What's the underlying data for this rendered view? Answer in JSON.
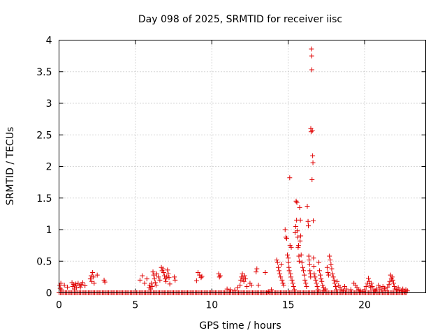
{
  "chart_data": {
    "type": "scatter",
    "title": "Day 098 of 2025, SRMTID for receiver iisc",
    "xlabel": "GPS time / hours",
    "ylabel": "SRMTID / TECUs",
    "xlim": [
      0,
      24
    ],
    "ylim": [
      0,
      4
    ],
    "xticks": [
      0,
      5,
      10,
      15,
      20
    ],
    "xtick_labels": [
      "0",
      "5",
      "10",
      "15",
      "20"
    ],
    "yticks": [
      0,
      0.5,
      1,
      1.5,
      2,
      2.5,
      3,
      3.5,
      4
    ],
    "ytick_labels": [
      "0",
      "0.5",
      "1",
      "1.5",
      "2",
      "2.5",
      "3",
      "3.5",
      "4"
    ],
    "grid": true,
    "marker": "plus",
    "color": "#e00000",
    "series": [
      {
        "name": "SRMTID",
        "baseline": {
          "x_start": 0.0,
          "x_end": 22.8,
          "step": 0.0833,
          "value": 0.0
        },
        "points": [
          [
            0.05,
            0.12
          ],
          [
            0.08,
            0.07
          ],
          [
            0.12,
            0.15
          ],
          [
            0.15,
            0.05
          ],
          [
            0.35,
            0.12
          ],
          [
            0.55,
            0.09
          ],
          [
            0.85,
            0.16
          ],
          [
            0.9,
            0.1
          ],
          [
            0.95,
            0.13
          ],
          [
            1.0,
            0.06
          ],
          [
            1.05,
            0.11
          ],
          [
            1.1,
            0.14
          ],
          [
            1.15,
            0.08
          ],
          [
            1.25,
            0.15
          ],
          [
            1.35,
            0.12
          ],
          [
            1.4,
            0.09
          ],
          [
            1.45,
            0.13
          ],
          [
            1.55,
            0.16
          ],
          [
            1.7,
            0.11
          ],
          [
            2.05,
            0.22
          ],
          [
            2.1,
            0.27
          ],
          [
            2.15,
            0.18
          ],
          [
            2.2,
            0.32
          ],
          [
            2.25,
            0.25
          ],
          [
            2.3,
            0.15
          ],
          [
            2.5,
            0.28
          ],
          [
            2.95,
            0.2
          ],
          [
            3.0,
            0.17
          ],
          [
            5.3,
            0.2
          ],
          [
            5.45,
            0.27
          ],
          [
            5.6,
            0.15
          ],
          [
            5.75,
            0.22
          ],
          [
            5.9,
            0.08
          ],
          [
            5.95,
            0.12
          ],
          [
            6.0,
            0.06
          ],
          [
            6.05,
            0.15
          ],
          [
            6.1,
            0.1
          ],
          [
            6.15,
            0.33
          ],
          [
            6.2,
            0.28
          ],
          [
            6.25,
            0.22
          ],
          [
            6.3,
            0.16
          ],
          [
            6.35,
            0.12
          ],
          [
            6.4,
            0.3
          ],
          [
            6.5,
            0.25
          ],
          [
            6.6,
            0.2
          ],
          [
            6.7,
            0.4
          ],
          [
            6.75,
            0.35
          ],
          [
            6.8,
            0.38
          ],
          [
            6.85,
            0.32
          ],
          [
            6.9,
            0.27
          ],
          [
            6.95,
            0.22
          ],
          [
            7.0,
            0.18
          ],
          [
            7.05,
            0.25
          ],
          [
            7.1,
            0.36
          ],
          [
            7.15,
            0.3
          ],
          [
            7.2,
            0.24
          ],
          [
            7.25,
            0.14
          ],
          [
            7.55,
            0.25
          ],
          [
            7.6,
            0.2
          ],
          [
            9.0,
            0.19
          ],
          [
            9.1,
            0.32
          ],
          [
            9.2,
            0.28
          ],
          [
            9.3,
            0.24
          ],
          [
            9.35,
            0.26
          ],
          [
            10.45,
            0.3
          ],
          [
            10.5,
            0.25
          ],
          [
            10.55,
            0.27
          ],
          [
            11.0,
            0.06
          ],
          [
            11.2,
            0.05
          ],
          [
            11.5,
            0.04
          ],
          [
            11.7,
            0.08
          ],
          [
            11.85,
            0.12
          ],
          [
            11.9,
            0.2
          ],
          [
            11.95,
            0.25
          ],
          [
            12.0,
            0.3
          ],
          [
            12.05,
            0.22
          ],
          [
            12.1,
            0.18
          ],
          [
            12.15,
            0.27
          ],
          [
            12.2,
            0.22
          ],
          [
            12.3,
            0.1
          ],
          [
            12.5,
            0.15
          ],
          [
            12.6,
            0.12
          ],
          [
            12.9,
            0.33
          ],
          [
            12.95,
            0.38
          ],
          [
            13.05,
            0.12
          ],
          [
            13.5,
            0.32
          ],
          [
            13.7,
            0.02
          ],
          [
            13.9,
            0.05
          ],
          [
            14.25,
            0.52
          ],
          [
            14.3,
            0.48
          ],
          [
            14.35,
            0.4
          ],
          [
            14.4,
            0.35
          ],
          [
            14.45,
            0.3
          ],
          [
            14.5,
            0.25
          ],
          [
            14.55,
            0.45
          ],
          [
            14.6,
            0.2
          ],
          [
            14.65,
            0.15
          ],
          [
            14.7,
            0.12
          ],
          [
            14.8,
            1.0
          ],
          [
            14.85,
            0.88
          ],
          [
            14.9,
            0.86
          ],
          [
            14.95,
            0.6
          ],
          [
            15.0,
            0.55
          ],
          [
            15.02,
            0.48
          ],
          [
            15.05,
            0.4
          ],
          [
            15.07,
            0.35
          ],
          [
            15.1,
            1.82
          ],
          [
            15.12,
            0.75
          ],
          [
            15.15,
            0.3
          ],
          [
            15.18,
            0.25
          ],
          [
            15.2,
            0.72
          ],
          [
            15.25,
            0.2
          ],
          [
            15.3,
            0.15
          ],
          [
            15.35,
            0.1
          ],
          [
            15.4,
            0.05
          ],
          [
            15.45,
            0.95
          ],
          [
            15.5,
            1.05
          ],
          [
            15.52,
            1.45
          ],
          [
            15.55,
            1.15
          ],
          [
            15.57,
            1.43
          ],
          [
            15.6,
            0.98
          ],
          [
            15.62,
            0.88
          ],
          [
            15.65,
            0.72
          ],
          [
            15.68,
            0.75
          ],
          [
            15.7,
            0.58
          ],
          [
            15.72,
            0.5
          ],
          [
            15.75,
            1.35
          ],
          [
            15.78,
            0.82
          ],
          [
            15.8,
            1.15
          ],
          [
            15.82,
            0.9
          ],
          [
            15.85,
            0.6
          ],
          [
            15.9,
            0.48
          ],
          [
            15.95,
            0.4
          ],
          [
            16.0,
            0.35
          ],
          [
            16.05,
            0.28
          ],
          [
            16.1,
            0.2
          ],
          [
            16.15,
            0.15
          ],
          [
            16.2,
            0.1
          ],
          [
            16.25,
            1.37
          ],
          [
            16.3,
            1.13
          ],
          [
            16.32,
            1.06
          ],
          [
            16.35,
            0.58
          ],
          [
            16.37,
            0.52
          ],
          [
            16.4,
            0.45
          ],
          [
            16.42,
            0.35
          ],
          [
            16.45,
            0.3
          ],
          [
            16.47,
            0.25
          ],
          [
            16.48,
            2.6
          ],
          [
            16.5,
            2.55
          ],
          [
            16.52,
            3.86
          ],
          [
            16.54,
            3.75
          ],
          [
            16.55,
            3.53
          ],
          [
            16.56,
            1.79
          ],
          [
            16.58,
            2.57
          ],
          [
            16.6,
            2.17
          ],
          [
            16.62,
            2.06
          ],
          [
            16.64,
            1.14
          ],
          [
            16.66,
            0.55
          ],
          [
            16.68,
            0.42
          ],
          [
            16.7,
            0.3
          ],
          [
            16.75,
            0.25
          ],
          [
            16.8,
            0.2
          ],
          [
            16.85,
            0.15
          ],
          [
            16.9,
            0.1
          ],
          [
            16.95,
            0.05
          ],
          [
            17.0,
            0.48
          ],
          [
            17.05,
            0.35
          ],
          [
            17.1,
            0.28
          ],
          [
            17.15,
            0.22
          ],
          [
            17.2,
            0.18
          ],
          [
            17.25,
            0.12
          ],
          [
            17.3,
            0.08
          ],
          [
            17.35,
            0.04
          ],
          [
            17.45,
            0.06
          ],
          [
            17.55,
            0.4
          ],
          [
            17.6,
            0.32
          ],
          [
            17.65,
            0.28
          ],
          [
            17.7,
            0.58
          ],
          [
            17.75,
            0.52
          ],
          [
            17.8,
            0.45
          ],
          [
            17.85,
            0.38
          ],
          [
            17.9,
            0.3
          ],
          [
            17.95,
            0.25
          ],
          [
            18.0,
            0.2
          ],
          [
            18.05,
            0.15
          ],
          [
            18.1,
            0.1
          ],
          [
            18.15,
            0.05
          ],
          [
            18.2,
            0.18
          ],
          [
            18.3,
            0.12
          ],
          [
            18.4,
            0.08
          ],
          [
            18.5,
            0.05
          ],
          [
            18.6,
            0.03
          ],
          [
            18.7,
            0.1
          ],
          [
            18.8,
            0.06
          ],
          [
            19.1,
            0.05
          ],
          [
            19.3,
            0.15
          ],
          [
            19.4,
            0.12
          ],
          [
            19.5,
            0.08
          ],
          [
            19.6,
            0.05
          ],
          [
            19.7,
            0.04
          ],
          [
            19.9,
            0.02
          ],
          [
            20.0,
            0.05
          ],
          [
            20.1,
            0.1
          ],
          [
            20.2,
            0.15
          ],
          [
            20.25,
            0.23
          ],
          [
            20.3,
            0.18
          ],
          [
            20.35,
            0.12
          ],
          [
            20.4,
            0.08
          ],
          [
            20.45,
            0.15
          ],
          [
            20.5,
            0.1
          ],
          [
            20.6,
            0.05
          ],
          [
            20.7,
            0.03
          ],
          [
            20.8,
            0.06
          ],
          [
            20.9,
            0.12
          ],
          [
            21.0,
            0.08
          ],
          [
            21.1,
            0.05
          ],
          [
            21.2,
            0.1
          ],
          [
            21.3,
            0.07
          ],
          [
            21.4,
            0.04
          ],
          [
            21.5,
            0.09
          ],
          [
            21.6,
            0.13
          ],
          [
            21.65,
            0.18
          ],
          [
            21.7,
            0.28
          ],
          [
            21.75,
            0.22
          ],
          [
            21.8,
            0.25
          ],
          [
            21.85,
            0.2
          ],
          [
            21.9,
            0.15
          ],
          [
            21.95,
            0.1
          ],
          [
            22.0,
            0.06
          ],
          [
            22.1,
            0.05
          ],
          [
            22.2,
            0.08
          ],
          [
            22.3,
            0.04
          ],
          [
            22.4,
            0.03
          ],
          [
            22.5,
            0.06
          ],
          [
            22.6,
            0.02
          ],
          [
            22.7,
            0.05
          ],
          [
            22.8,
            0.03
          ]
        ]
      }
    ]
  }
}
